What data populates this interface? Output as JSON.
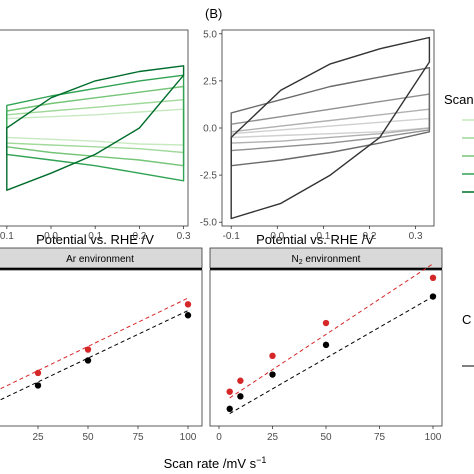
{
  "chart_data": [
    {
      "type": "line",
      "panel": "top-left",
      "xlabel": "Potential vs. RHE /V",
      "x_ticks": [
        "0.1",
        "0.0",
        "0.1",
        "0.2",
        "0.3"
      ],
      "xlim": [
        -0.12,
        0.31
      ],
      "ylim": [
        -5.2,
        5.2
      ],
      "cycles": [
        {
          "color": "#c7e9c0",
          "upper": [
            0.5,
            0.6,
            0.7,
            0.85,
            1.0
          ],
          "lower": [
            -0.5,
            -0.6,
            -0.7,
            -0.85,
            -0.9
          ]
        },
        {
          "color": "#a1d99b",
          "upper": [
            0.7,
            0.9,
            1.1,
            1.3,
            1.5
          ],
          "lower": [
            -0.8,
            -0.9,
            -1.0,
            -1.1,
            -1.3
          ]
        },
        {
          "color": "#74c476",
          "upper": [
            0.9,
            1.3,
            1.6,
            1.9,
            2.2
          ],
          "lower": [
            -1.0,
            -1.3,
            -1.5,
            -1.7,
            -2.0
          ]
        },
        {
          "color": "#31a354",
          "upper": [
            1.2,
            1.7,
            2.1,
            2.5,
            2.8
          ],
          "lower": [
            -1.4,
            -1.7,
            -2.0,
            -2.4,
            -2.8
          ]
        },
        {
          "color": "#006d2c",
          "upper": [
            0.0,
            1.6,
            2.5,
            3.0,
            3.3
          ],
          "lower": [
            -3.3,
            -2.4,
            -1.4,
            0.0,
            2.8
          ]
        }
      ]
    },
    {
      "type": "line",
      "panel": "top-right",
      "title": "(B)",
      "xlabel": "Potential vs. RHE /V",
      "x_ticks": [
        "-0.1",
        "0.0",
        "0.1",
        "0.2",
        "0.3"
      ],
      "y_ticks": [
        "5.0",
        "2.5",
        "0.0",
        "-2.5",
        "-5.0"
      ],
      "xlim": [
        -0.12,
        0.34
      ],
      "ylim": [
        -5.2,
        5.2
      ],
      "cycles": [
        {
          "color": "#d0d0d0",
          "upper": [
            -0.3,
            -0.1,
            0.1,
            0.3,
            0.5
          ],
          "lower": [
            -0.5,
            -0.4,
            -0.3,
            -0.2,
            0.0
          ]
        },
        {
          "color": "#b0b0b0",
          "upper": [
            -0.2,
            0.1,
            0.4,
            0.7,
            1.0
          ],
          "lower": [
            -0.8,
            -0.7,
            -0.5,
            -0.3,
            0.0
          ]
        },
        {
          "color": "#8f8f8f",
          "upper": [
            0.2,
            0.6,
            1.0,
            1.4,
            1.8
          ],
          "lower": [
            -1.2,
            -1.0,
            -0.8,
            -0.5,
            -0.1
          ]
        },
        {
          "color": "#6a6a6a",
          "upper": [
            0.8,
            1.5,
            2.2,
            2.7,
            3.2
          ],
          "lower": [
            -2.0,
            -1.7,
            -1.3,
            -0.8,
            -0.2
          ]
        },
        {
          "color": "#333333",
          "upper": [
            -0.5,
            2.0,
            3.4,
            4.2,
            4.8
          ],
          "lower": [
            -4.8,
            -4.0,
            -2.5,
            -0.5,
            3.5
          ]
        }
      ],
      "legend_title": "Scan"
    },
    {
      "type": "scatter",
      "panel": "bottom-left",
      "strip": "Ar environment",
      "x_ticks": [
        "25",
        "50",
        "75",
        "100"
      ],
      "xlim": [
        0,
        100
      ],
      "ylim": [
        0,
        1
      ],
      "series": [
        {
          "color": "#d62728",
          "x": [
            25,
            50,
            100
          ],
          "y": [
            0.34,
            0.49,
            0.78
          ],
          "fit": [
            [
              0,
              0.2
            ],
            [
              100,
              0.82
            ]
          ]
        },
        {
          "color": "#000000",
          "x": [
            25,
            50,
            100
          ],
          "y": [
            0.26,
            0.42,
            0.71
          ],
          "fit": [
            [
              0,
              0.13
            ],
            [
              100,
              0.74
            ]
          ]
        }
      ]
    },
    {
      "type": "scatter",
      "panel": "bottom-right",
      "strip_text": "N",
      "strip_sub": "2",
      "strip_rest": " environment",
      "x_ticks": [
        "0",
        "25",
        "50",
        "75",
        "100"
      ],
      "xlim": [
        0,
        100
      ],
      "ylim": [
        0,
        1
      ],
      "series": [
        {
          "color": "#d62728",
          "x": [
            5,
            10,
            25,
            50,
            100
          ],
          "y": [
            0.22,
            0.29,
            0.45,
            0.66,
            0.95
          ],
          "fit": [
            [
              5,
              0.18
            ],
            [
              100,
              1.04
            ]
          ]
        },
        {
          "color": "#000000",
          "x": [
            5,
            10,
            25,
            50,
            100
          ],
          "y": [
            0.11,
            0.19,
            0.33,
            0.52,
            0.83
          ],
          "fit": [
            [
              5,
              0.08
            ],
            [
              100,
              0.83
            ]
          ]
        }
      ],
      "legend_title": "C"
    }
  ],
  "bottom_xlabel": "Scan rate /mV s",
  "bottom_xlabel_sup": "−1"
}
